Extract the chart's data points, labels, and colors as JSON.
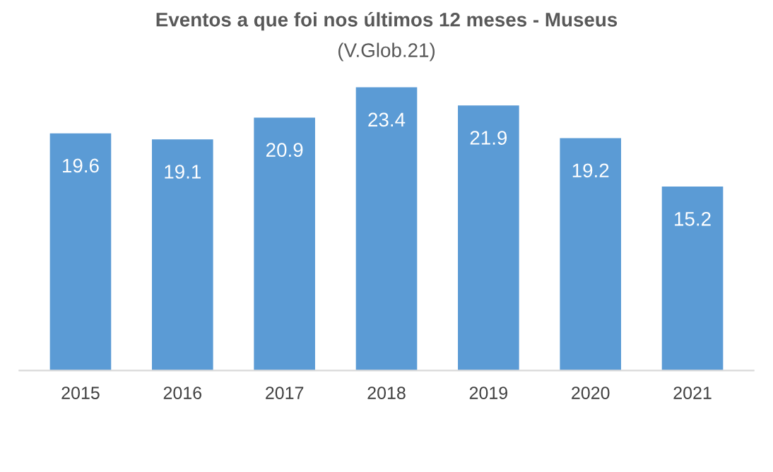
{
  "chart_data": {
    "type": "bar",
    "title": "Eventos a que foi nos últimos 12 meses - Museus",
    "subtitle": "(V.Glob.21)",
    "categories": [
      "2015",
      "2016",
      "2017",
      "2018",
      "2019",
      "2020",
      "2021"
    ],
    "values": [
      19.6,
      19.1,
      20.9,
      23.4,
      21.9,
      19.2,
      15.2
    ],
    "color": "#5b9bd5",
    "data_labels": true,
    "grid": false,
    "legend": false
  }
}
